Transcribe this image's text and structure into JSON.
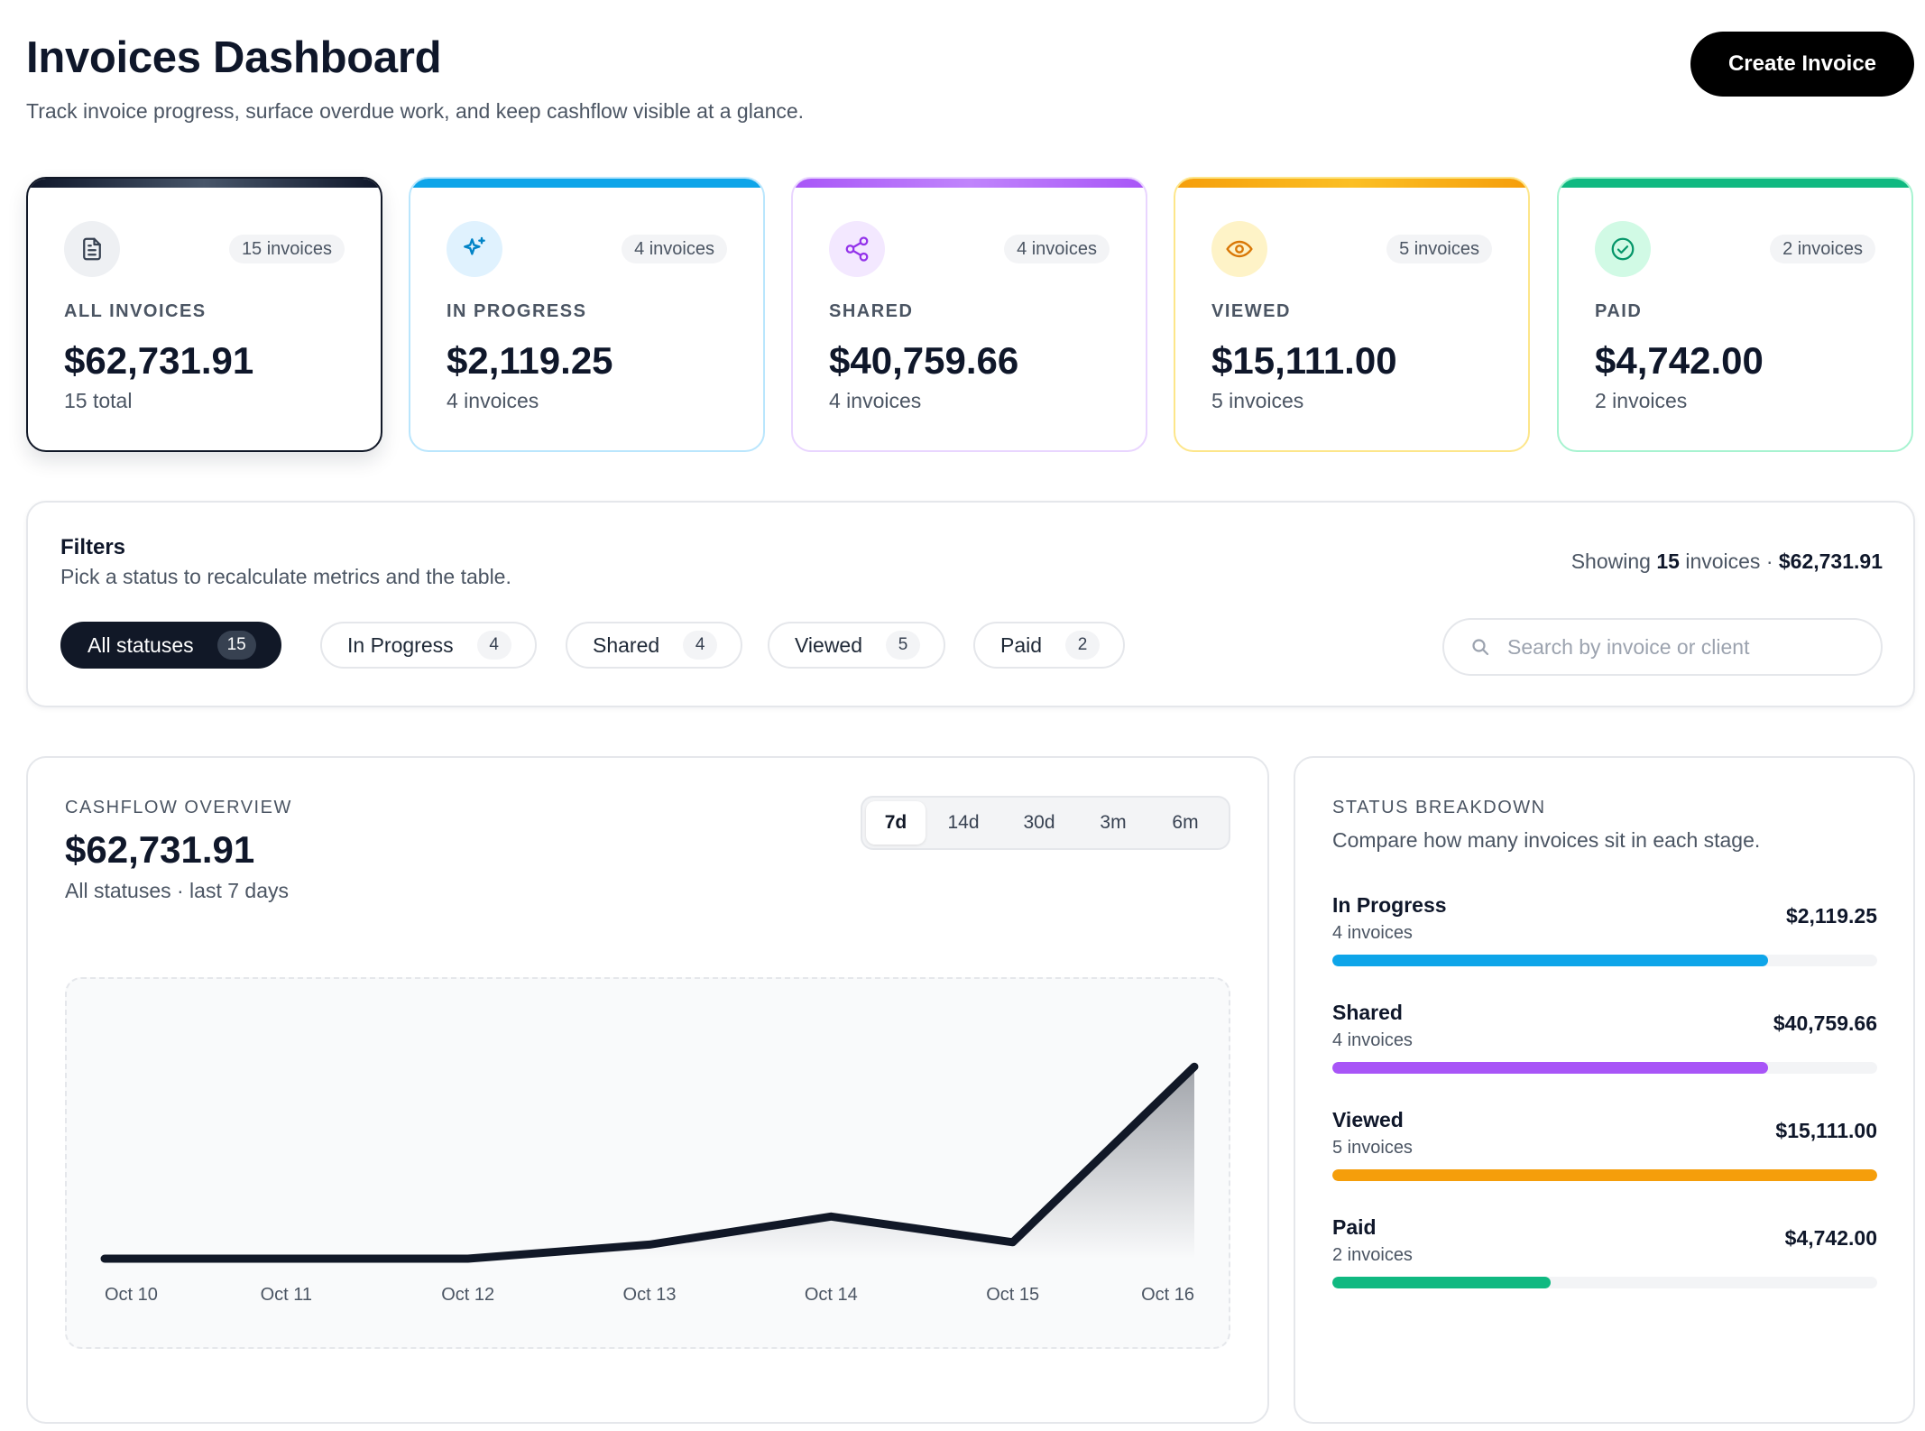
{
  "header": {
    "title": "Invoices Dashboard",
    "subtitle": "Track invoice progress, surface overdue work, and keep cashflow visible at a glance.",
    "create_label": "Create Invoice"
  },
  "cards": [
    {
      "key": "all",
      "count_label": "15 invoices",
      "label": "ALL INVOICES",
      "amount": "$62,731.91",
      "sub": "15 total",
      "icon": "document-icon",
      "accent": "#0f172a"
    },
    {
      "key": "prog",
      "count_label": "4 invoices",
      "label": "IN PROGRESS",
      "amount": "$2,119.25",
      "sub": "4 invoices",
      "icon": "sparkles-icon",
      "accent": "#0ea5e9"
    },
    {
      "key": "shared",
      "count_label": "4 invoices",
      "label": "SHARED",
      "amount": "$40,759.66",
      "sub": "4 invoices",
      "icon": "share-icon",
      "accent": "#a855f7"
    },
    {
      "key": "viewed",
      "count_label": "5 invoices",
      "label": "VIEWED",
      "amount": "$15,111.00",
      "sub": "5 invoices",
      "icon": "eye-icon",
      "accent": "#f59e0b"
    },
    {
      "key": "paid",
      "count_label": "2 invoices",
      "label": "PAID",
      "amount": "$4,742.00",
      "sub": "2 invoices",
      "icon": "check-circle-icon",
      "accent": "#10b981"
    }
  ],
  "filters": {
    "title": "Filters",
    "subtitle": "Pick a status to recalculate metrics and the table.",
    "showing_prefix": "Showing",
    "showing_count": "15",
    "showing_mid": "invoices ·",
    "showing_amount": "$62,731.91",
    "chips": [
      {
        "label": "All statuses",
        "count": "15",
        "active": true
      },
      {
        "label": "In Progress",
        "count": "4",
        "active": false
      },
      {
        "label": "Shared",
        "count": "4",
        "active": false
      },
      {
        "label": "Viewed",
        "count": "5",
        "active": false
      },
      {
        "label": "Paid",
        "count": "2",
        "active": false
      }
    ],
    "search_placeholder": "Search by invoice or client"
  },
  "cashflow": {
    "label": "CASHFLOW OVERVIEW",
    "amount": "$62,731.91",
    "sub": "All statuses · last 7 days",
    "ranges": [
      {
        "label": "7d",
        "active": true
      },
      {
        "label": "14d",
        "active": false
      },
      {
        "label": "30d",
        "active": false
      },
      {
        "label": "3m",
        "active": false
      },
      {
        "label": "6m",
        "active": false
      }
    ]
  },
  "chart_data": {
    "type": "area",
    "x": [
      "Oct 10",
      "Oct 11",
      "Oct 12",
      "Oct 13",
      "Oct 14",
      "Oct 15",
      "Oct 16"
    ],
    "values": [
      0,
      0,
      0,
      3000,
      9000,
      3500,
      41000
    ],
    "ylim": [
      0,
      42000
    ],
    "grid": false,
    "line_color": "#111827"
  },
  "breakdown": {
    "label": "STATUS BREAKDOWN",
    "subtitle": "Compare how many invoices sit in each stage.",
    "rows": [
      {
        "name": "In Progress",
        "count": "4 invoices",
        "amount": "$2,119.25",
        "fraction": 0.8,
        "color": "#0ea5e9"
      },
      {
        "name": "Shared",
        "count": "4 invoices",
        "amount": "$40,759.66",
        "fraction": 0.8,
        "color": "#a855f7"
      },
      {
        "name": "Viewed",
        "count": "5 invoices",
        "amount": "$15,111.00",
        "fraction": 1.0,
        "color": "#f59e0b"
      },
      {
        "name": "Paid",
        "count": "2 invoices",
        "amount": "$4,742.00",
        "fraction": 0.4,
        "color": "#10b981"
      }
    ]
  }
}
